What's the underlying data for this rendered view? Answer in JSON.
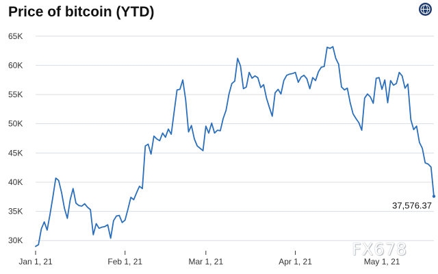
{
  "header": {
    "title": "Price of bitcoin (YTD)",
    "brand_icon": "globe-icon"
  },
  "watermark": "FX678",
  "colors": {
    "line": "#2a6ebb",
    "grid": "#d9dde2",
    "text": "#333333",
    "brand": "#1d3a6e"
  },
  "chart_data": {
    "type": "line",
    "title": "Price of bitcoin (YTD)",
    "xlabel": "",
    "ylabel": "",
    "x_ticks": [
      {
        "label": "Jan 1, 21",
        "day": 1
      },
      {
        "label": "Feb 1, 21",
        "day": 32
      },
      {
        "label": "Mar 1, 21",
        "day": 60
      },
      {
        "label": "Apr 1, 21",
        "day": 91
      },
      {
        "label": "May 1, 21",
        "day": 121
      }
    ],
    "y_ticks": [
      {
        "label": "30K",
        "value": 30000
      },
      {
        "label": "35K",
        "value": 35000
      },
      {
        "label": "40K",
        "value": 40000
      },
      {
        "label": "45K",
        "value": 45000
      },
      {
        "label": "50K",
        "value": 50000
      },
      {
        "label": "55K",
        "value": 55000
      },
      {
        "label": "60K",
        "value": 60000
      },
      {
        "label": "65K",
        "value": 65000
      }
    ],
    "xlim": [
      1,
      139
    ],
    "ylim": [
      28500,
      66500
    ],
    "grid": "horizontal",
    "last_value_label": "37,576.37",
    "series": [
      {
        "x": [
          1,
          2,
          3,
          4,
          5,
          6,
          7,
          8,
          9,
          10,
          11,
          12,
          13,
          14,
          15,
          16,
          17,
          18,
          19,
          20,
          21,
          22,
          23,
          24,
          25,
          26,
          27,
          28,
          29,
          30,
          31,
          32,
          33,
          34,
          35,
          36,
          37,
          38,
          39,
          40,
          41,
          42,
          43,
          44,
          45,
          46,
          47,
          48,
          49,
          50,
          51,
          52,
          53,
          54,
          55,
          56,
          57,
          58,
          59,
          60,
          61,
          62,
          63,
          64,
          65,
          66,
          67,
          68,
          69,
          70,
          71,
          72,
          73,
          74,
          75,
          76,
          77,
          78,
          79,
          80,
          81,
          82,
          83,
          84,
          85,
          86,
          87,
          88,
          89,
          90,
          91,
          92,
          93,
          94,
          95,
          96,
          97,
          98,
          99,
          100,
          101,
          102,
          103,
          104,
          105,
          106,
          107,
          108,
          109,
          110,
          111,
          112,
          113,
          114,
          115,
          116,
          117,
          118,
          119,
          120,
          121,
          122,
          123,
          124,
          125,
          126,
          127,
          128,
          129,
          130,
          131,
          132,
          133,
          134,
          135,
          136,
          137,
          138,
          139
        ],
        "y": [
          29000,
          29300,
          32000,
          33200,
          31800,
          34500,
          37500,
          40700,
          40300,
          38200,
          35500,
          33800,
          37000,
          38900,
          36400,
          36000,
          35900,
          36300,
          35700,
          35300,
          31000,
          32900,
          32100,
          32300,
          32400,
          32700,
          30400,
          33400,
          34200,
          34300,
          33100,
          33500,
          35400,
          37400,
          37000,
          38200,
          39300,
          38900,
          46200,
          46500,
          44800,
          47900,
          47400,
          47100,
          48400,
          47700,
          49100,
          48200,
          52000,
          55800,
          55900,
          57500,
          54100,
          48600,
          49700,
          47400,
          46200,
          45800,
          45400,
          49600,
          48400,
          50100,
          48400,
          48900,
          48800,
          50900,
          52300,
          55100,
          56900,
          57300,
          61200,
          59900,
          56000,
          56300,
          58800,
          57800,
          58200,
          57900,
          56200,
          56700,
          54400,
          52800,
          51300,
          55300,
          55900,
          55100,
          57400,
          58300,
          58500,
          58600,
          58800,
          57100,
          58000,
          58300,
          57700,
          56000,
          57900,
          57400,
          58900,
          59700,
          59800,
          63100,
          62900,
          63200,
          61200,
          60200,
          56300,
          55800,
          56100,
          53600,
          51700,
          50900,
          50200,
          48900,
          54400,
          55100,
          54600,
          53500,
          57800,
          57900,
          55900,
          57500,
          53600,
          57400,
          56600,
          56900,
          58800,
          58200,
          56100,
          56800,
          50700,
          49000,
          49600,
          46800,
          45800,
          43300,
          43100,
          42600,
          37576
        ]
      }
    ]
  }
}
